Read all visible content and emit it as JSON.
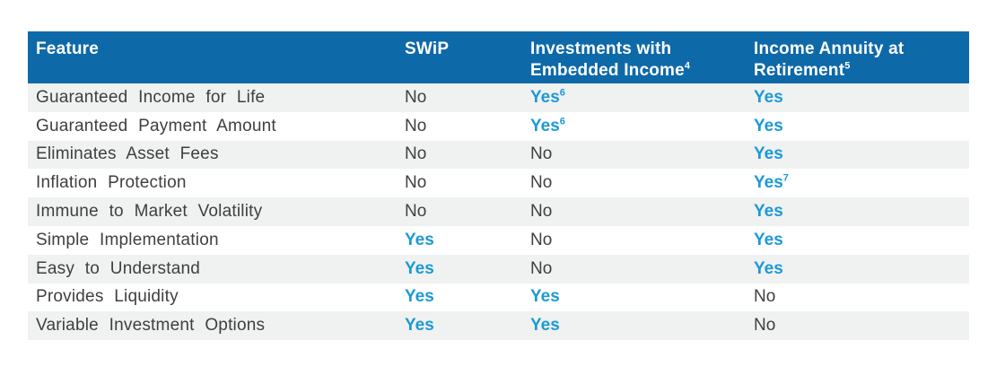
{
  "table": {
    "colors": {
      "header_bg": "#0e69a9",
      "header_text": "#ffffff",
      "row_alt_bg": "#f0f1f1",
      "body_text": "#3f3f3f",
      "yes_text": "#1b9ad5"
    },
    "header": [
      {
        "line1": "Feature",
        "line2": "",
        "sup": ""
      },
      {
        "line1": "SWiP",
        "line2": "",
        "sup": ""
      },
      {
        "line1": "Investments with",
        "line2": "Embedded Income",
        "sup": "4"
      },
      {
        "line1": "Income Annuity at",
        "line2": "Retirement",
        "sup": "5"
      }
    ],
    "rows": [
      {
        "feature": "Guaranteed Income for Life",
        "values": [
          {
            "text": "No",
            "sup": ""
          },
          {
            "text": "Yes",
            "sup": "6"
          },
          {
            "text": "Yes",
            "sup": ""
          }
        ]
      },
      {
        "feature": "Guaranteed Payment Amount",
        "values": [
          {
            "text": "No",
            "sup": ""
          },
          {
            "text": "Yes",
            "sup": "6"
          },
          {
            "text": "Yes",
            "sup": ""
          }
        ]
      },
      {
        "feature": "Eliminates Asset Fees",
        "values": [
          {
            "text": "No",
            "sup": ""
          },
          {
            "text": "No",
            "sup": ""
          },
          {
            "text": "Yes",
            "sup": ""
          }
        ]
      },
      {
        "feature": "Inflation Protection",
        "values": [
          {
            "text": "No",
            "sup": ""
          },
          {
            "text": "No",
            "sup": ""
          },
          {
            "text": "Yes",
            "sup": "7"
          }
        ]
      },
      {
        "feature": "Immune to Market Volatility",
        "values": [
          {
            "text": "No",
            "sup": ""
          },
          {
            "text": "No",
            "sup": ""
          },
          {
            "text": "Yes",
            "sup": ""
          }
        ]
      },
      {
        "feature": "Simple Implementation",
        "values": [
          {
            "text": "Yes",
            "sup": ""
          },
          {
            "text": "No",
            "sup": ""
          },
          {
            "text": "Yes",
            "sup": ""
          }
        ]
      },
      {
        "feature": "Easy to Understand",
        "values": [
          {
            "text": "Yes",
            "sup": ""
          },
          {
            "text": "No",
            "sup": ""
          },
          {
            "text": "Yes",
            "sup": ""
          }
        ]
      },
      {
        "feature": "Provides Liquidity",
        "values": [
          {
            "text": "Yes",
            "sup": ""
          },
          {
            "text": "Yes",
            "sup": ""
          },
          {
            "text": "No",
            "sup": ""
          }
        ]
      },
      {
        "feature": "Variable Investment Options",
        "values": [
          {
            "text": "Yes",
            "sup": ""
          },
          {
            "text": "Yes",
            "sup": ""
          },
          {
            "text": "No",
            "sup": ""
          }
        ]
      }
    ]
  }
}
